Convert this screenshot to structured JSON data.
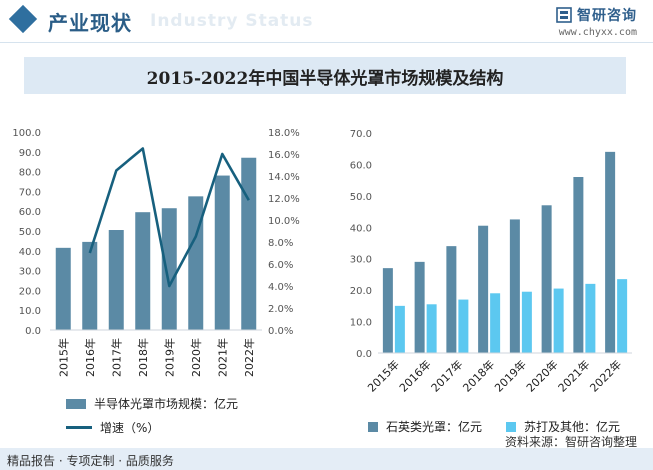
{
  "header": {
    "title": "产业现状",
    "watermark": "Industry Status",
    "brand_name": "智研咨询",
    "brand_url": "www.chyxx.com"
  },
  "main_title": "2015-2022年中国半导体光罩市场规模及结构",
  "colors": {
    "bar_primary": "#5b8aa5",
    "line": "#17607e",
    "bar_secondary": "#5cc8f0",
    "accent": "#2a5d87"
  },
  "chart_data": [
    {
      "type": "bar",
      "categories": [
        "2015年",
        "2016年",
        "2017年",
        "2018年",
        "2019年",
        "2020年",
        "2021年",
        "2022年"
      ],
      "series": [
        {
          "name": "半导体光罩市场规模：亿元",
          "type": "bar",
          "axis": "left",
          "values": [
            41.5,
            44.5,
            50.5,
            59.5,
            61.5,
            67.5,
            78.0,
            87.0
          ]
        },
        {
          "name": "增速（%）",
          "type": "line",
          "axis": "right",
          "values": [
            null,
            7.0,
            14.5,
            16.5,
            4.0,
            8.5,
            16.0,
            11.8
          ]
        }
      ],
      "ylim_left": [
        0,
        100
      ],
      "yticks_left": [
        "0.0",
        "10.0",
        "20.0",
        "30.0",
        "40.0",
        "50.0",
        "60.0",
        "70.0",
        "80.0",
        "90.0",
        "100.0"
      ],
      "ylim_right": [
        0,
        18
      ],
      "yticks_right": [
        "0.0%",
        "2.0%",
        "4.0%",
        "6.0%",
        "8.0%",
        "10.0%",
        "12.0%",
        "14.0%",
        "16.0%",
        "18.0%"
      ],
      "grid": false,
      "legend": "bottom"
    },
    {
      "type": "bar",
      "categories": [
        "2015年",
        "2016年",
        "2017年",
        "2018年",
        "2019年",
        "2020年",
        "2021年",
        "2022年"
      ],
      "series": [
        {
          "name": "石英类光罩：亿元",
          "values": [
            27.0,
            29.0,
            34.0,
            40.5,
            42.5,
            47.0,
            56.0,
            64.0
          ]
        },
        {
          "name": "苏打及其他：亿元",
          "values": [
            15.0,
            15.5,
            17.0,
            19.0,
            19.5,
            20.5,
            22.0,
            23.5
          ]
        }
      ],
      "ylim": [
        0,
        70
      ],
      "yticks": [
        "0.0",
        "10.0",
        "20.0",
        "30.0",
        "40.0",
        "50.0",
        "60.0",
        "70.0"
      ],
      "grid": false,
      "legend": "bottom"
    }
  ],
  "footer": {
    "left": "精品报告 · 专项定制 · 品质服务",
    "source": "资料来源：智研咨询整理"
  }
}
